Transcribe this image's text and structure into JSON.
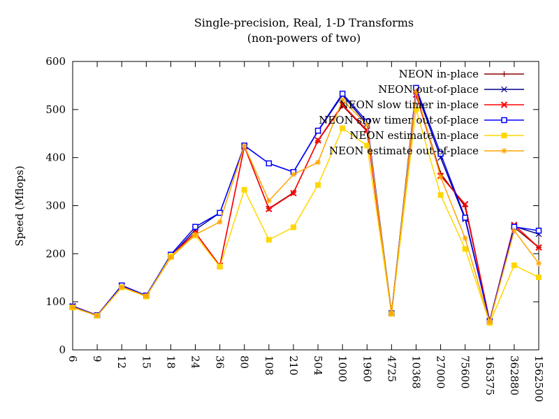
{
  "chart_data": {
    "type": "line",
    "title": "Single-precision, Real, 1-D Transforms",
    "subtitle": "(non-powers of two)",
    "xlabel": "",
    "ylabel": "Speed (Mflops)",
    "ylim": [
      0,
      600
    ],
    "yticks": [
      0,
      100,
      200,
      300,
      400,
      500,
      600
    ],
    "grid": false,
    "legend_position": "top-right",
    "categories": [
      "6",
      "9",
      "12",
      "15",
      "18",
      "24",
      "36",
      "80",
      "108",
      "210",
      "504",
      "1000",
      "1960",
      "4725",
      "10368",
      "27000",
      "75600",
      "165375",
      "362880",
      "1562500"
    ],
    "series": [
      {
        "name": "NEON in-place",
        "color": "#8b0000",
        "marker": "plus",
        "values": [
          91,
          72,
          134,
          113,
          195,
          244,
          175,
          423,
          294,
          327,
          435,
          508,
          455,
          76,
          532,
          367,
          298,
          60,
          255,
          213
        ]
      },
      {
        "name": "NEON out-of-place",
        "color": "#00008b",
        "marker": "cross",
        "values": [
          91,
          72,
          134,
          113,
          195,
          250,
          285,
          425,
          388,
          370,
          455,
          530,
          470,
          76,
          540,
          400,
          272,
          60,
          257,
          241
        ]
      },
      {
        "name": "NEON slow timer in-place",
        "color": "#ff0000",
        "marker": "xmark",
        "values": [
          90,
          72,
          133,
          113,
          195,
          244,
          175,
          423,
          293,
          326,
          436,
          510,
          457,
          76,
          531,
          362,
          303,
          60,
          260,
          213
        ]
      },
      {
        "name": "NEON slow timer out-of-place",
        "color": "#0000ff",
        "marker": "square",
        "values": [
          90,
          72,
          134,
          113,
          198,
          256,
          285,
          425,
          388,
          370,
          456,
          533,
          475,
          76,
          545,
          408,
          275,
          60,
          256,
          248
        ]
      },
      {
        "name": "NEON estimate in-place",
        "color": "#ffd700",
        "marker": "filled-square",
        "values": [
          88,
          71,
          130,
          111,
          195,
          238,
          173,
          333,
          229,
          255,
          343,
          461,
          425,
          75,
          500,
          322,
          210,
          56,
          176,
          151
        ]
      },
      {
        "name": "NEON estimate out-of-place",
        "color": "#ffa500",
        "marker": "asterisk",
        "values": [
          89,
          71,
          131,
          112,
          192,
          240,
          266,
          424,
          310,
          365,
          390,
          520,
          468,
          75,
          538,
          360,
          232,
          58,
          248,
          180
        ]
      }
    ]
  }
}
